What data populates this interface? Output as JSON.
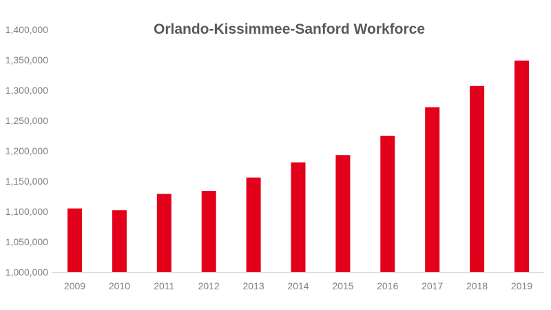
{
  "chart_data": {
    "type": "bar",
    "title": "Orlando-Kissimmee-Sanford Workforce",
    "xlabel": "",
    "ylabel": "",
    "categories": [
      "2009",
      "2010",
      "2011",
      "2012",
      "2013",
      "2014",
      "2015",
      "2016",
      "2017",
      "2018",
      "2019"
    ],
    "values": [
      1105000,
      1102000,
      1129000,
      1134000,
      1156000,
      1181000,
      1193000,
      1225000,
      1272000,
      1307000,
      1349000
    ],
    "ylim": [
      1000000,
      1400000
    ],
    "y_ticks": [
      1000000,
      1050000,
      1100000,
      1150000,
      1200000,
      1250000,
      1300000,
      1350000,
      1400000
    ],
    "y_tick_labels": [
      "1,000,000",
      "1,050,000",
      "1,100,000",
      "1,150,000",
      "1,200,000",
      "1,250,000",
      "1,300,000",
      "1,350,000",
      "1,400,000"
    ],
    "grid": false,
    "legend": "none",
    "bar_color": "#e3001b",
    "axis_color": "#d9d9d9",
    "text_color": "#7f7f7f",
    "title_color": "#595959"
  }
}
